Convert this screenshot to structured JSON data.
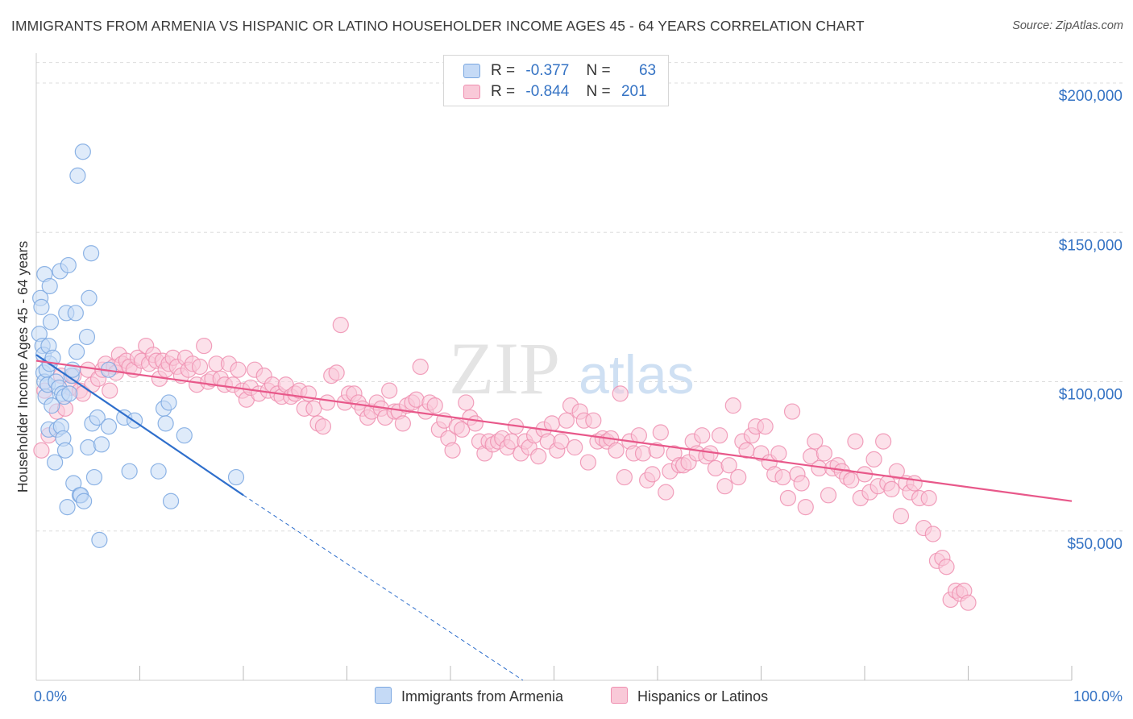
{
  "title": "IMMIGRANTS FROM ARMENIA VS HISPANIC OR LATINO HOUSEHOLDER INCOME AGES 45 - 64 YEARS CORRELATION CHART",
  "source": "Source: ZipAtlas.com",
  "watermark": {
    "zip": "ZIP",
    "atlas": "atlas"
  },
  "colors": {
    "blue_fill": "#c5daf6",
    "blue_stroke": "#7aa7e0",
    "blue_line": "#2f6fcc",
    "pink_fill": "#f9c9d8",
    "pink_stroke": "#ef8fb0",
    "pink_line": "#e8588a",
    "axis_label": "#3573c4",
    "grid": "#dddddd"
  },
  "legend": {
    "blue": {
      "r_label": "R =",
      "r_value": "-0.377",
      "n_label": "N =",
      "n_value": "63"
    },
    "pink": {
      "r_label": "R =",
      "r_value": "-0.844",
      "n_label": "N =",
      "n_value": "201"
    }
  },
  "chart_data": {
    "type": "scatter",
    "ylabel": "Householder Income Ages 45 - 64 years",
    "xlim": [
      0,
      100
    ],
    "ylim": [
      0,
      210000
    ],
    "x_tick_labels": [
      "0.0%",
      "100.0%"
    ],
    "y_ticks": [
      50000,
      100000,
      150000,
      200000
    ],
    "y_tick_labels": [
      "$50,000",
      "$100,000",
      "$150,000",
      "$200,000"
    ],
    "grid": "horizontal dashed",
    "legend_position": "top-center",
    "series": [
      {
        "name": "Immigrants from Armenia",
        "color": "blue",
        "trend": {
          "x0": 0,
          "y0": 109000,
          "x1": 20,
          "y1": 62000,
          "dash_to_x": 47,
          "dash_to_y": 0
        },
        "points": [
          [
            0.3,
            116000
          ],
          [
            0.4,
            128000
          ],
          [
            0.5,
            125000
          ],
          [
            0.6,
            112000
          ],
          [
            0.7,
            109000
          ],
          [
            0.7,
            103000
          ],
          [
            0.8,
            100000
          ],
          [
            0.8,
            136000
          ],
          [
            0.9,
            95000
          ],
          [
            1.0,
            104000
          ],
          [
            1.1,
            99000
          ],
          [
            1.2,
            112000
          ],
          [
            1.3,
            132000
          ],
          [
            1.4,
            120000
          ],
          [
            1.3,
            106000
          ],
          [
            1.5,
            92000
          ],
          [
            1.2,
            84000
          ],
          [
            1.6,
            108000
          ],
          [
            1.8,
            73000
          ],
          [
            1.9,
            100000
          ],
          [
            2.0,
            84000
          ],
          [
            2.2,
            98000
          ],
          [
            2.3,
            137000
          ],
          [
            2.4,
            85000
          ],
          [
            2.5,
            96000
          ],
          [
            2.6,
            81000
          ],
          [
            2.7,
            95000
          ],
          [
            2.8,
            77000
          ],
          [
            2.9,
            123000
          ],
          [
            3.0,
            58000
          ],
          [
            3.1,
            139000
          ],
          [
            3.2,
            96000
          ],
          [
            3.4,
            102000
          ],
          [
            3.5,
            104000
          ],
          [
            3.6,
            66000
          ],
          [
            3.8,
            123000
          ],
          [
            3.9,
            110000
          ],
          [
            4.0,
            169000
          ],
          [
            4.2,
            62000
          ],
          [
            4.3,
            62000
          ],
          [
            4.5,
            177000
          ],
          [
            4.6,
            60000
          ],
          [
            4.9,
            115000
          ],
          [
            5.0,
            78000
          ],
          [
            5.1,
            128000
          ],
          [
            5.3,
            143000
          ],
          [
            5.4,
            86000
          ],
          [
            5.6,
            68000
          ],
          [
            5.9,
            88000
          ],
          [
            6.1,
            47000
          ],
          [
            6.3,
            79000
          ],
          [
            7.0,
            104000
          ],
          [
            7.0,
            85000
          ],
          [
            8.5,
            88000
          ],
          [
            9.0,
            70000
          ],
          [
            9.5,
            87000
          ],
          [
            11.8,
            70000
          ],
          [
            12.3,
            91000
          ],
          [
            12.5,
            86000
          ],
          [
            12.8,
            93000
          ],
          [
            13.0,
            60000
          ],
          [
            14.3,
            82000
          ],
          [
            19.3,
            68000
          ]
        ]
      },
      {
        "name": "Hispanics or Latinos",
        "color": "pink",
        "trend": {
          "x0": 0,
          "y0": 107000,
          "x1": 100,
          "y1": 60000
        },
        "points": [
          [
            0.5,
            77000
          ],
          [
            0.8,
            97000
          ],
          [
            1.2,
            82000
          ],
          [
            2.0,
            90000
          ],
          [
            2.4,
            102000
          ],
          [
            2.8,
            91000
          ],
          [
            3.3,
            98000
          ],
          [
            3.6,
            102000
          ],
          [
            4.2,
            97000
          ],
          [
            4.5,
            96000
          ],
          [
            5.0,
            104000
          ],
          [
            5.4,
            99000
          ],
          [
            6.0,
            101000
          ],
          [
            6.4,
            104000
          ],
          [
            6.7,
            106000
          ],
          [
            7.1,
            97000
          ],
          [
            7.5,
            105000
          ],
          [
            7.7,
            103000
          ],
          [
            8.0,
            109000
          ],
          [
            8.3,
            106000
          ],
          [
            8.7,
            107000
          ],
          [
            9.0,
            105000
          ],
          [
            9.4,
            104000
          ],
          [
            9.8,
            108000
          ],
          [
            10.2,
            107000
          ],
          [
            10.6,
            112000
          ],
          [
            10.9,
            106000
          ],
          [
            11.3,
            109000
          ],
          [
            11.6,
            107000
          ],
          [
            11.9,
            101000
          ],
          [
            12.2,
            107000
          ],
          [
            12.5,
            104000
          ],
          [
            12.8,
            106000
          ],
          [
            13.2,
            108000
          ],
          [
            13.6,
            105000
          ],
          [
            14.0,
            102000
          ],
          [
            14.4,
            108000
          ],
          [
            14.7,
            104000
          ],
          [
            15.1,
            106000
          ],
          [
            15.5,
            99000
          ],
          [
            15.8,
            105000
          ],
          [
            16.2,
            112000
          ],
          [
            16.6,
            100000
          ],
          [
            17.0,
            101000
          ],
          [
            17.4,
            106000
          ],
          [
            17.8,
            101000
          ],
          [
            18.2,
            99000
          ],
          [
            18.6,
            106000
          ],
          [
            19.0,
            99000
          ],
          [
            19.5,
            104000
          ],
          [
            19.9,
            97000
          ],
          [
            20.3,
            94000
          ],
          [
            20.7,
            98000
          ],
          [
            21.1,
            104000
          ],
          [
            21.5,
            96000
          ],
          [
            22.0,
            102000
          ],
          [
            22.4,
            97000
          ],
          [
            22.8,
            99000
          ],
          [
            23.3,
            96000
          ],
          [
            23.7,
            95000
          ],
          [
            24.1,
            99000
          ],
          [
            24.6,
            95000
          ],
          [
            25.0,
            96000
          ],
          [
            25.4,
            97000
          ],
          [
            25.9,
            91000
          ],
          [
            26.3,
            96000
          ],
          [
            26.8,
            91000
          ],
          [
            27.2,
            86000
          ],
          [
            27.7,
            85000
          ],
          [
            28.1,
            93000
          ],
          [
            28.5,
            102000
          ],
          [
            29.0,
            103000
          ],
          [
            29.4,
            119000
          ],
          [
            29.8,
            93000
          ],
          [
            30.2,
            96000
          ],
          [
            30.7,
            96000
          ],
          [
            31.1,
            93000
          ],
          [
            31.5,
            91000
          ],
          [
            32.0,
            88000
          ],
          [
            32.4,
            90000
          ],
          [
            32.9,
            93000
          ],
          [
            33.3,
            91000
          ],
          [
            33.7,
            88000
          ],
          [
            34.1,
            97000
          ],
          [
            34.6,
            90000
          ],
          [
            35.0,
            90000
          ],
          [
            35.4,
            86000
          ],
          [
            35.8,
            92000
          ],
          [
            36.3,
            93000
          ],
          [
            36.7,
            94000
          ],
          [
            37.1,
            105000
          ],
          [
            37.6,
            90000
          ],
          [
            38.0,
            93000
          ],
          [
            38.5,
            92000
          ],
          [
            38.9,
            84000
          ],
          [
            39.4,
            87000
          ],
          [
            39.8,
            81000
          ],
          [
            40.2,
            77000
          ],
          [
            40.6,
            85000
          ],
          [
            41.1,
            84000
          ],
          [
            41.5,
            93000
          ],
          [
            41.9,
            88000
          ],
          [
            42.4,
            86000
          ],
          [
            42.8,
            80000
          ],
          [
            43.3,
            76000
          ],
          [
            43.7,
            80000
          ],
          [
            44.1,
            79000
          ],
          [
            44.6,
            80000
          ],
          [
            45.0,
            81000
          ],
          [
            45.5,
            78000
          ],
          [
            45.9,
            80000
          ],
          [
            46.3,
            85000
          ],
          [
            46.8,
            76000
          ],
          [
            47.2,
            80000
          ],
          [
            47.6,
            78000
          ],
          [
            48.1,
            82000
          ],
          [
            48.5,
            75000
          ],
          [
            49.0,
            84000
          ],
          [
            49.4,
            80000
          ],
          [
            49.8,
            86000
          ],
          [
            50.3,
            77000
          ],
          [
            50.7,
            80000
          ],
          [
            51.2,
            87000
          ],
          [
            51.6,
            92000
          ],
          [
            52.0,
            78000
          ],
          [
            52.5,
            90000
          ],
          [
            52.9,
            87000
          ],
          [
            53.3,
            73000
          ],
          [
            53.8,
            87000
          ],
          [
            54.2,
            80000
          ],
          [
            54.7,
            81000
          ],
          [
            55.1,
            80000
          ],
          [
            55.5,
            81000
          ],
          [
            56.0,
            77000
          ],
          [
            56.4,
            96000
          ],
          [
            56.8,
            68000
          ],
          [
            57.3,
            80000
          ],
          [
            57.7,
            76000
          ],
          [
            58.2,
            82000
          ],
          [
            58.6,
            76000
          ],
          [
            59.0,
            67000
          ],
          [
            59.5,
            69000
          ],
          [
            59.9,
            77000
          ],
          [
            60.3,
            83000
          ],
          [
            60.8,
            63000
          ],
          [
            61.2,
            70000
          ],
          [
            61.6,
            76000
          ],
          [
            62.1,
            72000
          ],
          [
            62.5,
            72000
          ],
          [
            63.0,
            73000
          ],
          [
            63.4,
            80000
          ],
          [
            63.8,
            76000
          ],
          [
            64.3,
            82000
          ],
          [
            64.7,
            75000
          ],
          [
            65.1,
            76000
          ],
          [
            65.6,
            71000
          ],
          [
            66.0,
            82000
          ],
          [
            66.5,
            65000
          ],
          [
            66.9,
            72000
          ],
          [
            67.3,
            92000
          ],
          [
            67.8,
            68000
          ],
          [
            68.2,
            80000
          ],
          [
            68.6,
            77000
          ],
          [
            69.1,
            82000
          ],
          [
            69.5,
            85000
          ],
          [
            70.0,
            76000
          ],
          [
            70.4,
            85000
          ],
          [
            70.8,
            73000
          ],
          [
            71.3,
            69000
          ],
          [
            71.7,
            76000
          ],
          [
            72.1,
            68000
          ],
          [
            72.6,
            61000
          ],
          [
            73.0,
            90000
          ],
          [
            73.5,
            69000
          ],
          [
            73.9,
            66000
          ],
          [
            74.3,
            58000
          ],
          [
            74.8,
            75000
          ],
          [
            75.2,
            80000
          ],
          [
            75.6,
            71000
          ],
          [
            76.1,
            76000
          ],
          [
            76.5,
            62000
          ],
          [
            76.9,
            71000
          ],
          [
            77.4,
            72000
          ],
          [
            77.8,
            70000
          ],
          [
            78.3,
            68000
          ],
          [
            78.7,
            67000
          ],
          [
            79.1,
            80000
          ],
          [
            79.6,
            61000
          ],
          [
            80.0,
            69000
          ],
          [
            80.5,
            63000
          ],
          [
            80.9,
            74000
          ],
          [
            81.3,
            65000
          ],
          [
            81.8,
            80000
          ],
          [
            82.2,
            66000
          ],
          [
            82.6,
            64000
          ],
          [
            83.1,
            70000
          ],
          [
            83.5,
            55000
          ],
          [
            84.0,
            66000
          ],
          [
            84.4,
            63000
          ],
          [
            84.8,
            66000
          ],
          [
            85.3,
            61000
          ],
          [
            85.7,
            51000
          ],
          [
            86.2,
            61000
          ],
          [
            86.6,
            49000
          ],
          [
            87.0,
            40000
          ],
          [
            87.5,
            41000
          ],
          [
            87.9,
            38000
          ],
          [
            88.3,
            27000
          ],
          [
            88.8,
            30000
          ],
          [
            89.2,
            29000
          ],
          [
            89.6,
            30000
          ],
          [
            90.0,
            26000
          ]
        ]
      }
    ]
  },
  "bottom_legend": [
    "Immigrants from Armenia",
    "Hispanics or Latinos"
  ]
}
